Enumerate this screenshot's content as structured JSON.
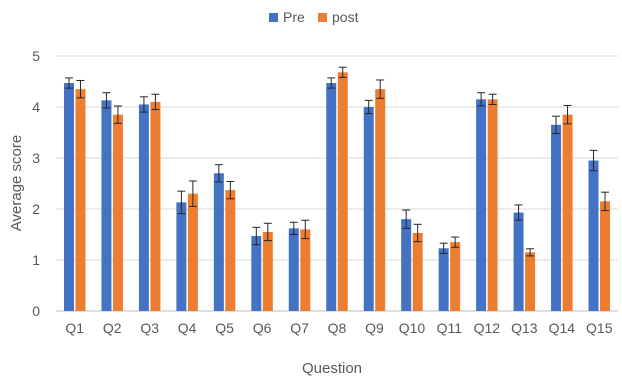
{
  "chart_data": {
    "type": "bar",
    "title": "",
    "xlabel": "Question",
    "ylabel": "Average score",
    "ylim": [
      0,
      5
    ],
    "yticks": [
      0,
      1,
      2,
      3,
      4,
      5
    ],
    "grid": true,
    "legend_position": "top",
    "categories": [
      "Q1",
      "Q2",
      "Q3",
      "Q4",
      "Q5",
      "Q6",
      "Q7",
      "Q8",
      "Q9",
      "Q10",
      "Q11",
      "Q12",
      "Q13",
      "Q14",
      "Q15"
    ],
    "series": [
      {
        "name": "Pre",
        "color": "#4472C4",
        "values": [
          4.47,
          4.13,
          4.05,
          2.13,
          2.7,
          1.47,
          1.62,
          4.47,
          4.0,
          1.8,
          1.23,
          4.15,
          1.93,
          3.65,
          2.95
        ],
        "errors": [
          0.1,
          0.15,
          0.15,
          0.22,
          0.17,
          0.17,
          0.12,
          0.1,
          0.13,
          0.18,
          0.1,
          0.13,
          0.15,
          0.17,
          0.2
        ]
      },
      {
        "name": "post",
        "color": "#ED7D31",
        "values": [
          4.35,
          3.85,
          4.1,
          2.3,
          2.37,
          1.55,
          1.6,
          4.68,
          4.35,
          1.53,
          1.35,
          4.15,
          1.15,
          3.85,
          2.15
        ],
        "errors": [
          0.17,
          0.17,
          0.15,
          0.25,
          0.17,
          0.17,
          0.18,
          0.1,
          0.18,
          0.17,
          0.1,
          0.1,
          0.07,
          0.18,
          0.18
        ]
      }
    ]
  }
}
